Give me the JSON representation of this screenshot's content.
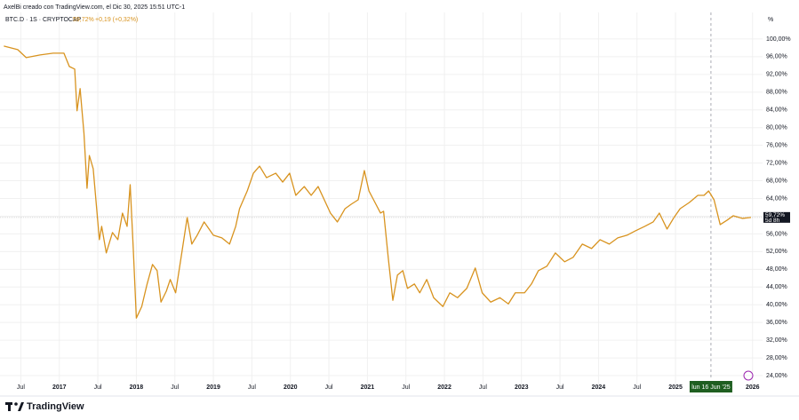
{
  "header": {
    "credit": "AxelBi creado con TradingView.com, el Dic 30, 2025 15:51 UTC-1",
    "brand": "TradingView"
  },
  "chart_data": {
    "type": "line",
    "symbol": "BTC.D · 1S · CRYPTOCAP",
    "last_value": {
      "value": 59.72,
      "label": "59,72%"
    },
    "change": "+0,19 (+0,32%)",
    "countdown": "5d 8h",
    "y_unit": "%",
    "crosshair": {
      "value": 2025.46,
      "label": "lun 16 Jun '25"
    },
    "xlim": [
      2016.23,
      2026.13
    ],
    "ylim": [
      21.2,
      106.0
    ],
    "xticks": [
      {
        "value": 2016.5,
        "label": "Jul"
      },
      2017,
      {
        "value": 2017.5,
        "label": "Jul"
      },
      2018,
      {
        "value": 2018.5,
        "label": "Jul"
      },
      2019,
      {
        "value": 2019.5,
        "label": "Jul"
      },
      2020,
      {
        "value": 2020.5,
        "label": "Jul"
      },
      2021,
      {
        "value": 2021.5,
        "label": "Jul"
      },
      2022,
      {
        "value": 2022.5,
        "label": "Jul"
      },
      2023,
      {
        "value": 2023.5,
        "label": "Jul"
      },
      2024,
      {
        "value": 2024.5,
        "label": "Jul"
      },
      2025,
      2026
    ],
    "yticks": [
      {
        "value": 24,
        "label": "24,00%"
      },
      {
        "value": 28,
        "label": "28,00%"
      },
      {
        "value": 32,
        "label": "32,00%"
      },
      {
        "value": 36,
        "label": "36,00%"
      },
      {
        "value": 40,
        "label": "40,00%"
      },
      {
        "value": 44,
        "label": "44,00%"
      },
      {
        "value": 48,
        "label": "48,00%"
      },
      {
        "value": 52,
        "label": "52,00%"
      },
      {
        "value": 56,
        "label": "56,00%"
      },
      {
        "value": 60,
        "label": "60,00%"
      },
      {
        "value": 64,
        "label": "64,00%"
      },
      {
        "value": 68,
        "label": "68,00%"
      },
      {
        "value": 72,
        "label": "72,00%"
      },
      {
        "value": 76,
        "label": "76,00%"
      },
      {
        "value": 80,
        "label": "80,00%"
      },
      {
        "value": 84,
        "label": "84,00%"
      },
      {
        "value": 88,
        "label": "88,00%"
      },
      {
        "value": 92,
        "label": "92,00%"
      },
      {
        "value": 96,
        "label": "96,00%"
      },
      {
        "value": 100,
        "label": "100,00%"
      }
    ],
    "grid": true,
    "color": "#d8931f",
    "x": [
      2016.28,
      2016.46,
      2016.57,
      2016.75,
      2016.92,
      2017.06,
      2017.13,
      2017.2,
      2017.23,
      2017.27,
      2017.32,
      2017.36,
      2017.39,
      2017.44,
      2017.5,
      2017.52,
      2017.55,
      2017.61,
      2017.69,
      2017.76,
      2017.82,
      2017.88,
      2017.92,
      2017.96,
      2018.0,
      2018.07,
      2018.14,
      2018.21,
      2018.27,
      2018.32,
      2018.39,
      2018.44,
      2018.51,
      2018.59,
      2018.66,
      2018.72,
      2018.79,
      2018.88,
      2019.0,
      2019.11,
      2019.21,
      2019.29,
      2019.34,
      2019.44,
      2019.52,
      2019.6,
      2019.69,
      2019.81,
      2019.9,
      2019.99,
      2020.07,
      2020.18,
      2020.27,
      2020.36,
      2020.44,
      2020.52,
      2020.61,
      2020.71,
      2020.79,
      2020.88,
      2020.96,
      2021.02,
      2021.08,
      2021.17,
      2021.21,
      2021.27,
      2021.33,
      2021.39,
      2021.46,
      2021.52,
      2021.61,
      2021.68,
      2021.77,
      2021.86,
      2021.98,
      2022.07,
      2022.17,
      2022.29,
      2022.4,
      2022.49,
      2022.6,
      2022.72,
      2022.83,
      2022.92,
      2023.04,
      2023.13,
      2023.22,
      2023.33,
      2023.44,
      2023.56,
      2023.67,
      2023.79,
      2023.91,
      2024.02,
      2024.14,
      2024.25,
      2024.37,
      2024.48,
      2024.6,
      2024.71,
      2024.79,
      2024.89,
      2024.98,
      2025.06,
      2025.18,
      2025.29,
      2025.37,
      2025.43,
      2025.5,
      2025.58,
      2025.67,
      2025.75,
      2025.87,
      2025.98
    ],
    "values": [
      98.4,
      97.6,
      95.8,
      96.4,
      96.8,
      96.8,
      93.8,
      93.2,
      83.8,
      88.8,
      78.7,
      66.3,
      73.7,
      70.7,
      58.7,
      54.7,
      57.7,
      51.7,
      56.3,
      54.7,
      60.7,
      57.7,
      67.1,
      52.7,
      37.0,
      39.6,
      44.7,
      49.1,
      47.7,
      40.6,
      43.1,
      45.7,
      42.7,
      51.7,
      59.7,
      53.7,
      55.7,
      58.7,
      55.7,
      55.1,
      53.7,
      57.7,
      61.7,
      65.7,
      69.7,
      71.3,
      68.7,
      69.7,
      67.7,
      69.7,
      64.7,
      66.7,
      64.7,
      66.7,
      63.7,
      60.7,
      58.7,
      61.7,
      62.7,
      63.7,
      70.3,
      65.7,
      63.7,
      60.7,
      61.1,
      50.7,
      41.0,
      46.7,
      47.7,
      43.7,
      44.7,
      42.7,
      45.7,
      41.6,
      39.6,
      42.7,
      41.6,
      43.7,
      48.3,
      42.7,
      40.6,
      41.6,
      40.2,
      42.7,
      42.7,
      44.7,
      47.7,
      48.7,
      51.7,
      49.7,
      50.7,
      53.7,
      52.7,
      54.7,
      53.7,
      55.1,
      55.7,
      56.7,
      57.7,
      58.7,
      60.7,
      57.1,
      59.7,
      61.7,
      63.1,
      64.7,
      64.7,
      65.7,
      63.7,
      58.1,
      59.1,
      60.1,
      59.5,
      59.72
    ]
  }
}
